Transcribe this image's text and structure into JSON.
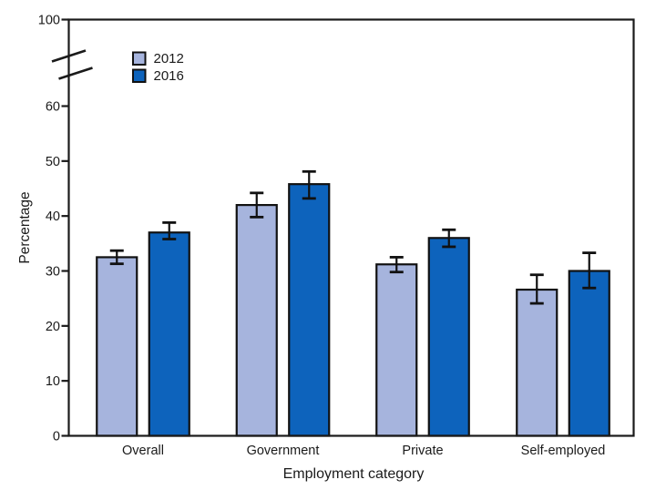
{
  "chart_data": {
    "type": "bar",
    "title": "",
    "xlabel": "Employment category",
    "ylabel": "Percentage",
    "categories": [
      "Overall",
      "Government",
      "Private",
      "Self-employed"
    ],
    "series": [
      {
        "name": "2012",
        "color": "#a6b4dd",
        "values": [
          32.5,
          42.0,
          31.2,
          26.6
        ],
        "ci_low": [
          31.3,
          39.8,
          29.8,
          24.1
        ],
        "ci_high": [
          33.7,
          44.2,
          32.5,
          29.3
        ]
      },
      {
        "name": "2016",
        "color": "#0d63bc",
        "values": [
          37.0,
          45.8,
          36.0,
          30.0
        ],
        "ci_low": [
          35.8,
          43.2,
          34.4,
          26.9
        ],
        "ci_high": [
          38.8,
          48.1,
          37.5,
          33.3
        ]
      }
    ],
    "yticks": [
      0,
      10,
      20,
      30,
      40,
      50,
      60
    ],
    "ytick_after_break": 100,
    "axis_break": true,
    "ylim": [
      0,
      100
    ],
    "grid": false,
    "error_bars": true,
    "legend_position": "upper-left-inside"
  },
  "style": {
    "background": "#ffffff",
    "axis_color": "#1a1a1a",
    "bar_border": "#111111",
    "text_color": "#1a1a1a"
  }
}
